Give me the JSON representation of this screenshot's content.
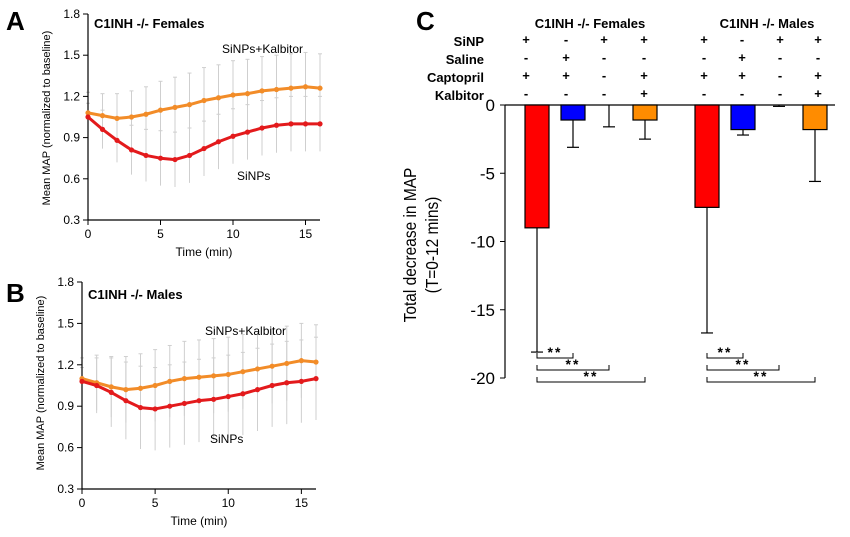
{
  "panel_letters": {
    "a": "A",
    "b": "B",
    "c": "C"
  },
  "chart_data": [
    {
      "id": "A",
      "type": "line",
      "title": "C1INH -/- Females",
      "xlabel": "Time (min)",
      "ylabel": "Mean MAP (normalized to baseline)",
      "xlim": [
        0,
        16
      ],
      "ylim": [
        0.3,
        1.8
      ],
      "xticks": [
        0,
        5,
        10,
        15
      ],
      "yticks": [
        0.3,
        0.6,
        0.9,
        1.2,
        1.5,
        1.8
      ],
      "ytick_labels": [
        "0.3",
        "0.6",
        "0.9",
        "1.2",
        "1.5",
        "1.8"
      ],
      "grid": false,
      "series": [
        {
          "name": "SiNPs+Kalbitor",
          "color": "#F28C28",
          "x": [
            0,
            1,
            2,
            3,
            4,
            5,
            6,
            7,
            8,
            9,
            10,
            11,
            12,
            13,
            14,
            15,
            16
          ],
          "y": [
            1.08,
            1.06,
            1.04,
            1.05,
            1.07,
            1.1,
            1.12,
            1.14,
            1.17,
            1.19,
            1.21,
            1.22,
            1.24,
            1.25,
            1.26,
            1.27,
            1.26
          ],
          "error": [
            0.15,
            0.16,
            0.18,
            0.19,
            0.2,
            0.21,
            0.22,
            0.23,
            0.24,
            0.24,
            0.25,
            0.25,
            0.25,
            0.25,
            0.25,
            0.25,
            0.25
          ]
        },
        {
          "name": "SiNPs",
          "color": "#E31A1C",
          "x": [
            0,
            1,
            2,
            3,
            4,
            5,
            6,
            7,
            8,
            9,
            10,
            11,
            12,
            13,
            14,
            15,
            16
          ],
          "y": [
            1.05,
            0.96,
            0.88,
            0.81,
            0.77,
            0.75,
            0.74,
            0.77,
            0.82,
            0.87,
            0.91,
            0.94,
            0.97,
            0.99,
            1.0,
            1.0,
            1.0
          ],
          "error": [
            0.1,
            0.14,
            0.16,
            0.18,
            0.19,
            0.2,
            0.2,
            0.2,
            0.2,
            0.2,
            0.2,
            0.2,
            0.2,
            0.2,
            0.2,
            0.2,
            0.2
          ]
        }
      ]
    },
    {
      "id": "B",
      "type": "line",
      "title": "C1INH -/- Males",
      "xlabel": "Time (min)",
      "ylabel": "Mean MAP (normalized to baseline)",
      "xlim": [
        0,
        16
      ],
      "ylim": [
        0.3,
        1.8
      ],
      "xticks": [
        0,
        5,
        10,
        15
      ],
      "yticks": [
        0.3,
        0.6,
        0.9,
        1.2,
        1.5,
        1.8
      ],
      "ytick_labels": [
        "0.3",
        "0.6",
        "0.9",
        "1.2",
        "1.5",
        "1.8"
      ],
      "grid": false,
      "series": [
        {
          "name": "SiNPs+Kalbitor",
          "color": "#F28C28",
          "x": [
            0,
            1,
            2,
            3,
            4,
            5,
            6,
            7,
            8,
            9,
            10,
            11,
            12,
            13,
            14,
            15,
            16
          ],
          "y": [
            1.1,
            1.07,
            1.04,
            1.02,
            1.03,
            1.05,
            1.08,
            1.1,
            1.11,
            1.12,
            1.13,
            1.15,
            1.17,
            1.19,
            1.21,
            1.23,
            1.22
          ],
          "error": [
            0.15,
            0.2,
            0.22,
            0.24,
            0.25,
            0.26,
            0.26,
            0.27,
            0.27,
            0.27,
            0.27,
            0.27,
            0.27,
            0.27,
            0.27,
            0.27,
            0.27
          ]
        },
        {
          "name": "SiNPs",
          "color": "#E31A1C",
          "x": [
            0,
            1,
            2,
            3,
            4,
            5,
            6,
            7,
            8,
            9,
            10,
            11,
            12,
            13,
            14,
            15,
            16
          ],
          "y": [
            1.08,
            1.05,
            1.0,
            0.94,
            0.89,
            0.88,
            0.9,
            0.92,
            0.94,
            0.95,
            0.97,
            0.99,
            1.02,
            1.05,
            1.07,
            1.08,
            1.1
          ],
          "error": [
            0.1,
            0.2,
            0.25,
            0.28,
            0.3,
            0.3,
            0.3,
            0.3,
            0.3,
            0.3,
            0.3,
            0.3,
            0.3,
            0.3,
            0.3,
            0.3,
            0.3
          ]
        }
      ]
    },
    {
      "id": "C",
      "type": "bar",
      "ylabel": "Total decrease in  MAP",
      "ylabel2": "(T=0-12 mins)",
      "ylim": [
        -20,
        0
      ],
      "yticks": [
        0,
        -5,
        -10,
        -15,
        -20
      ],
      "ytick_labels": [
        "0",
        "-5",
        "-10",
        "-15",
        "-20"
      ],
      "groups": [
        {
          "title": "C1INH -/- Females",
          "values": [
            -9.0,
            -1.1,
            0.0,
            -1.1
          ],
          "errors": [
            9.1,
            2.0,
            1.6,
            1.4
          ],
          "colors": [
            "#FF0000",
            "#0000FF",
            "#FFFFFF",
            "#FF8C00"
          ],
          "significance": [
            "**",
            "**",
            "**"
          ]
        },
        {
          "title": "C1INH -/- Males",
          "values": [
            -7.5,
            -1.8,
            0.0,
            -1.8
          ],
          "errors": [
            9.2,
            0.4,
            0.1,
            3.8
          ],
          "colors": [
            "#FF0000",
            "#0000FF",
            "#FFFFFF",
            "#FF8C00"
          ],
          "significance": [
            "**",
            "**",
            "**"
          ]
        }
      ],
      "treatment_table": {
        "rows": [
          {
            "label": "SiNP",
            "signs": [
              "+",
              "-",
              "+",
              "+"
            ]
          },
          {
            "label": "Saline",
            "signs": [
              "-",
              "+",
              "-",
              "-"
            ]
          },
          {
            "label": "Captopril",
            "signs": [
              "+",
              "+",
              "-",
              "+"
            ]
          },
          {
            "label": "Kalbitor",
            "signs": [
              "-",
              "-",
              "-",
              "+"
            ]
          }
        ]
      }
    }
  ]
}
